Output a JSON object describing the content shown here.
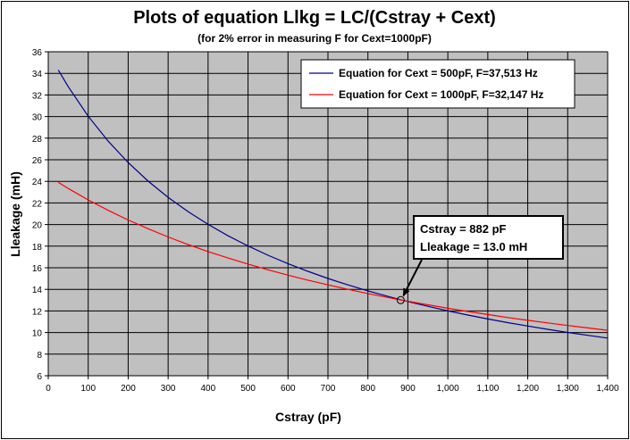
{
  "chart_data": {
    "type": "line",
    "title": "Plots of equation Llkg = LC/(Cstray + Cext)",
    "subtitle": "(for 2% error in measuring F for Cext=1000pF)",
    "xlabel": "Cstray (pF)",
    "ylabel": "Lleakage (mH)",
    "xlim": [
      0,
      1400
    ],
    "ylim": [
      6,
      36
    ],
    "x_ticks": [
      0,
      100,
      200,
      300,
      400,
      500,
      600,
      700,
      800,
      900,
      1000,
      1100,
      1200,
      1300,
      1400
    ],
    "x_tick_labels": [
      "0",
      "100",
      "200",
      "300",
      "400",
      "500",
      "600",
      "700",
      "800",
      "900",
      "1,000",
      "1,100",
      "1,200",
      "1,300",
      "1,400"
    ],
    "y_ticks": [
      6,
      8,
      10,
      12,
      14,
      16,
      18,
      20,
      22,
      24,
      26,
      28,
      30,
      32,
      34,
      36
    ],
    "y_tick_labels": [
      "6",
      "8",
      "10",
      "12",
      "14",
      "16",
      "18",
      "20",
      "22",
      "24",
      "26",
      "28",
      "30",
      "32",
      "34",
      "36"
    ],
    "grid": true,
    "plot_background": "#c0c0c0",
    "legend_position": "top-right",
    "series": [
      {
        "name": "Equation for Cext = 500pF, F=37,513 Hz",
        "color": "#00008b",
        "x": [
          25,
          50,
          100,
          150,
          200,
          250,
          300,
          350,
          400,
          450,
          500,
          550,
          600,
          650,
          700,
          750,
          800,
          850,
          882,
          900,
          950,
          1000,
          1050,
          1100,
          1150,
          1200,
          1250,
          1300,
          1350,
          1400
        ],
        "y": [
          34.31,
          32.76,
          30.03,
          27.72,
          25.74,
          24.02,
          22.52,
          21.2,
          20.02,
          18.96,
          18.02,
          17.16,
          16.38,
          15.67,
          15.01,
          14.41,
          13.86,
          13.35,
          13.04,
          12.87,
          12.43,
          12.01,
          11.62,
          11.26,
          10.92,
          10.6,
          10.3,
          10.01,
          9.74,
          9.49
        ]
      },
      {
        "name": "Equation for Cext = 1000pF, F=32,147 Hz",
        "color": "#ff0000",
        "x": [
          25,
          50,
          100,
          150,
          200,
          250,
          300,
          350,
          400,
          450,
          500,
          550,
          600,
          650,
          700,
          750,
          800,
          850,
          882,
          900,
          950,
          1000,
          1050,
          1100,
          1150,
          1200,
          1250,
          1300,
          1350,
          1400
        ],
        "y": [
          23.91,
          23.34,
          22.28,
          21.31,
          20.42,
          19.61,
          18.85,
          18.15,
          17.5,
          16.9,
          16.34,
          15.81,
          15.31,
          14.85,
          14.41,
          14.0,
          13.61,
          13.25,
          13.02,
          12.9,
          12.57,
          12.25,
          11.95,
          11.67,
          11.39,
          11.13,
          10.89,
          10.65,
          10.43,
          10.21
        ]
      }
    ],
    "callout": {
      "line1": "Cstray = 882 pF",
      "line2": "Lleakage = 13.0 mH",
      "point": {
        "x": 882,
        "y": 13.0
      }
    }
  }
}
